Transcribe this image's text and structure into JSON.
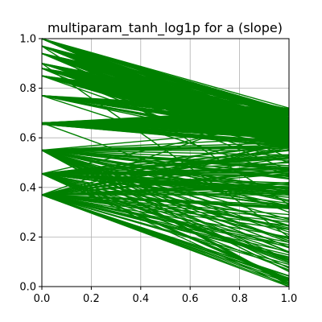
{
  "chart_data": {
    "type": "line",
    "title": "multiparam_tanh_log1p for a (slope)",
    "xlabel": "",
    "ylabel": "",
    "xlim": [
      0,
      1
    ],
    "ylim": [
      0,
      1
    ],
    "grid": true,
    "line_color": "#008000",
    "xticks": [
      0.0,
      0.2,
      0.4,
      0.6,
      0.8,
      1.0
    ],
    "yticks": [
      0.0,
      0.2,
      0.4,
      0.6,
      0.8,
      1.0
    ],
    "xtick_labels": [
      "0.0",
      "0.2",
      "0.4",
      "0.6",
      "0.8",
      "1.0"
    ],
    "ytick_labels": [
      "0.0",
      "0.2",
      "0.4",
      "0.6",
      "0.8",
      "1.0"
    ],
    "start_levels": [
      1.0,
      0.97,
      0.94,
      0.9,
      0.88,
      0.85,
      0.77,
      0.66,
      0.655,
      0.55,
      0.455,
      0.37
    ],
    "end_range": [
      0.0,
      0.72
    ],
    "segments": [
      {
        "y0": 1.0,
        "y1": 0.72
      },
      {
        "y0": 1.0,
        "y1": 0.71
      },
      {
        "y0": 1.0,
        "y1": 0.7
      },
      {
        "y0": 1.0,
        "y1": 0.69
      },
      {
        "y0": 1.0,
        "y1": 0.68
      },
      {
        "y0": 0.97,
        "y1": 0.71
      },
      {
        "y0": 0.97,
        "y1": 0.69
      },
      {
        "y0": 0.97,
        "y1": 0.67
      },
      {
        "y0": 0.97,
        "y1": 0.65
      },
      {
        "y0": 0.94,
        "y1": 0.7
      },
      {
        "y0": 0.94,
        "y1": 0.68
      },
      {
        "y0": 0.94,
        "y1": 0.66
      },
      {
        "y0": 0.9,
        "y1": 0.7
      },
      {
        "y0": 0.9,
        "y1": 0.68
      },
      {
        "y0": 0.9,
        "y1": 0.66
      },
      {
        "y0": 0.9,
        "y1": 0.64
      },
      {
        "y0": 0.88,
        "y1": 0.69
      },
      {
        "y0": 0.88,
        "y1": 0.67
      },
      {
        "y0": 0.88,
        "y1": 0.65
      },
      {
        "y0": 0.85,
        "y1": 0.7
      },
      {
        "y0": 0.85,
        "y1": 0.68
      },
      {
        "y0": 0.85,
        "y1": 0.66
      },
      {
        "y0": 0.85,
        "y1": 0.63
      },
      {
        "y0": 0.77,
        "y1": 0.7
      },
      {
        "y0": 0.77,
        "y1": 0.67
      },
      {
        "y0": 0.77,
        "y1": 0.64
      },
      {
        "y0": 0.77,
        "y1": 0.62
      },
      {
        "y0": 0.66,
        "y1": 0.66
      },
      {
        "y0": 0.66,
        "y1": 0.64
      },
      {
        "y0": 0.66,
        "y1": 0.62
      },
      {
        "y0": 0.66,
        "y1": 0.6
      },
      {
        "y0": 0.655,
        "y1": 0.65
      },
      {
        "y0": 0.655,
        "y1": 0.61
      },
      {
        "y0": 0.655,
        "y1": 0.58
      },
      {
        "y0": 0.55,
        "y1": 0.64
      },
      {
        "y0": 0.55,
        "y1": 0.6
      },
      {
        "y0": 0.55,
        "y1": 0.58
      },
      {
        "y0": 0.55,
        "y1": 0.57
      },
      {
        "y0": 0.455,
        "y1": 0.57
      },
      {
        "y0": 0.455,
        "y1": 0.55
      },
      {
        "y0": 0.455,
        "y1": 0.52
      },
      {
        "y0": 0.455,
        "y1": 0.48
      },
      {
        "y0": 0.455,
        "y1": 0.45
      },
      {
        "y0": 0.455,
        "y1": 0.4
      },
      {
        "y0": 0.455,
        "y1": 0.36
      },
      {
        "y0": 0.37,
        "y1": 0.56
      },
      {
        "y0": 0.37,
        "y1": 0.52
      },
      {
        "y0": 0.37,
        "y1": 0.47
      },
      {
        "y0": 0.37,
        "y1": 0.42
      },
      {
        "y0": 0.37,
        "y1": 0.37
      },
      {
        "y0": 0.37,
        "y1": 0.32
      },
      {
        "y0": 0.37,
        "y1": 0.26
      },
      {
        "y0": 0.37,
        "y1": 0.2
      },
      {
        "y0": 0.37,
        "y1": 0.14
      },
      {
        "y0": 0.37,
        "y1": 0.08
      },
      {
        "y0": 0.37,
        "y1": 0.03
      },
      {
        "y0": 0.37,
        "y1": 0.0
      },
      {
        "y0": 0.66,
        "y1": 0.3
      },
      {
        "y0": 0.55,
        "y1": 0.22
      },
      {
        "y0": 0.455,
        "y1": 0.1
      },
      {
        "y0": 0.455,
        "y1": 0.0
      },
      {
        "y0": 0.77,
        "y1": 0.45
      },
      {
        "y0": 0.85,
        "y1": 0.5
      },
      {
        "y0": 0.94,
        "y1": 0.52
      },
      {
        "y0": 0.88,
        "y1": 0.47
      },
      {
        "y0": 1.0,
        "y1": 0.56
      },
      {
        "y0": 0.97,
        "y1": 0.33
      },
      {
        "y0": 0.9,
        "y1": 0.2
      },
      {
        "y0": 0.37,
        "y1": 0.72
      },
      {
        "y0": 0.455,
        "y1": 0.68
      },
      {
        "y0": 0.37,
        "y1": 0.62
      }
    ]
  }
}
